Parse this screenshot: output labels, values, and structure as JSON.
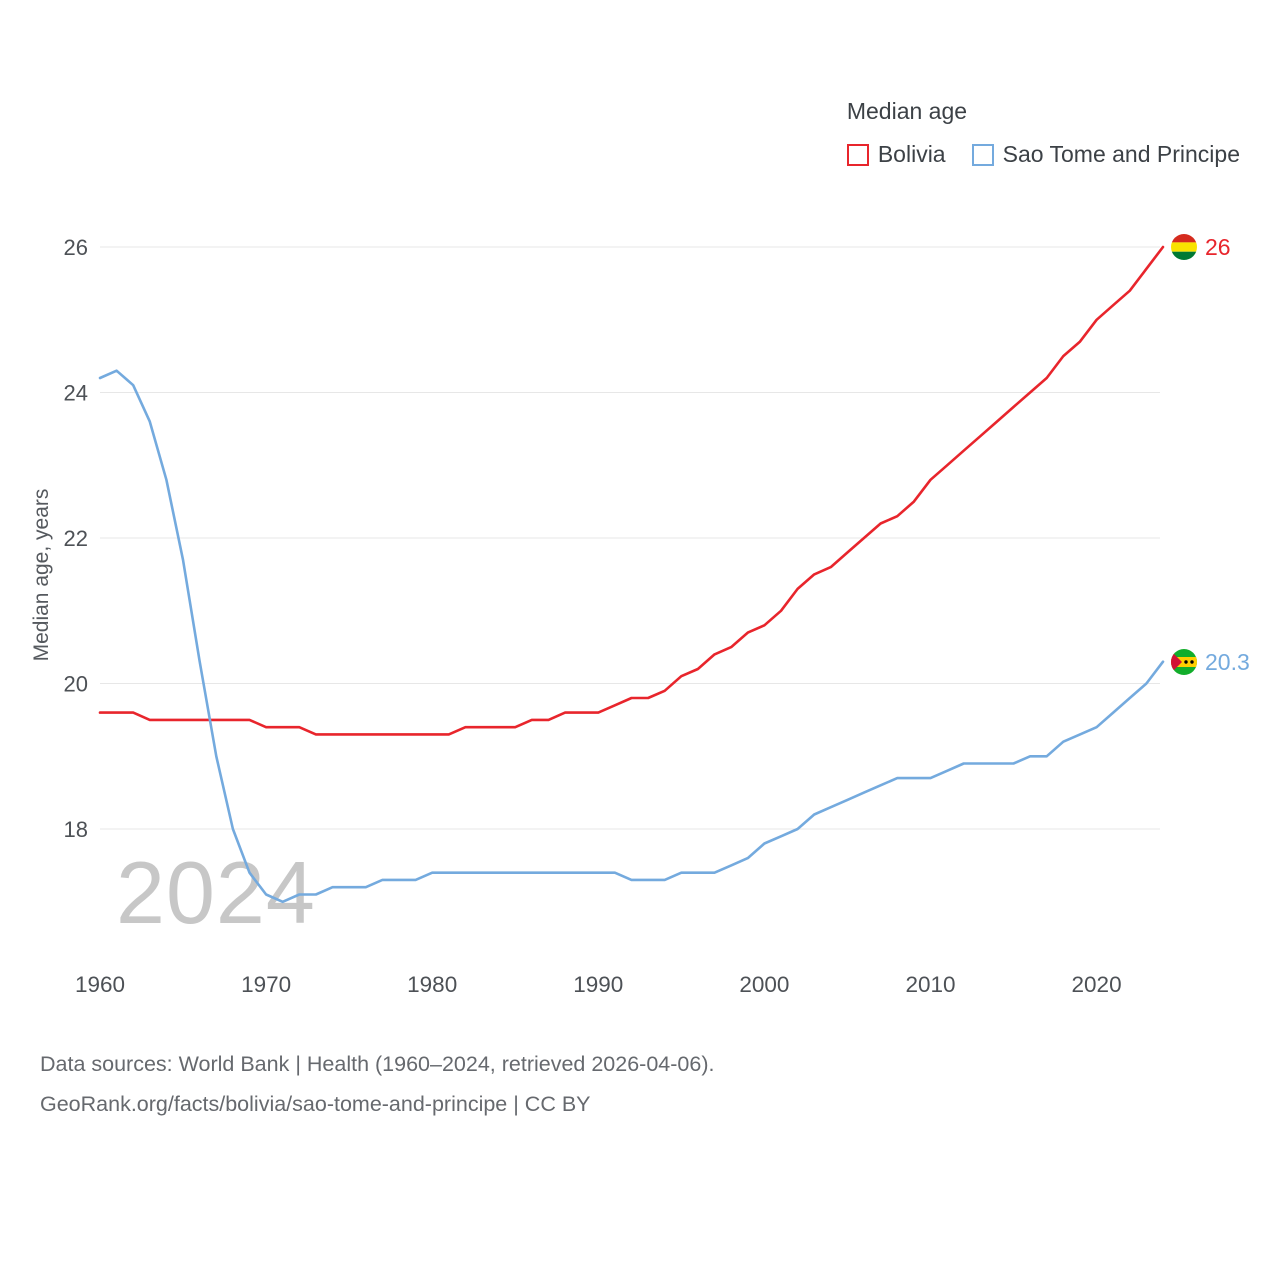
{
  "legend": {
    "title": "Median age",
    "items": [
      {
        "label": "Bolivia",
        "color": "#e8252c"
      },
      {
        "label": "Sao Tome and Principe",
        "color": "#74aade"
      }
    ]
  },
  "watermark": "2024",
  "end_labels": [
    {
      "value": "26",
      "color": "#e8252c",
      "flag": "bolivia-flag-icon"
    },
    {
      "value": "20.3",
      "color": "#74aade",
      "flag": "sao-tome-flag-icon"
    }
  ],
  "footer": {
    "line1": "Data sources: World Bank | Health (1960–2024, retrieved 2026-04-06).",
    "line2": "GeoRank.org/facts/bolivia/sao-tome-and-principe | CC BY"
  },
  "chart_data": {
    "type": "line",
    "title": "Median age",
    "xlabel": "",
    "ylabel": "Median age, years",
    "ylim": [
      16.8,
      26.3
    ],
    "grid": "horizontal",
    "legend_position": "top-right",
    "yticks": [
      18,
      20,
      22,
      24,
      26
    ],
    "xticks": [
      1960,
      1970,
      1980,
      1990,
      2000,
      2010,
      2020
    ],
    "x": [
      1960,
      1961,
      1962,
      1963,
      1964,
      1965,
      1966,
      1967,
      1968,
      1969,
      1970,
      1971,
      1972,
      1973,
      1974,
      1975,
      1976,
      1977,
      1978,
      1979,
      1980,
      1981,
      1982,
      1983,
      1984,
      1985,
      1986,
      1987,
      1988,
      1989,
      1990,
      1991,
      1992,
      1993,
      1994,
      1995,
      1996,
      1997,
      1998,
      1999,
      2000,
      2001,
      2002,
      2003,
      2004,
      2005,
      2006,
      2007,
      2008,
      2009,
      2010,
      2011,
      2012,
      2013,
      2014,
      2015,
      2016,
      2017,
      2018,
      2019,
      2020,
      2021,
      2022,
      2023,
      2024
    ],
    "series": [
      {
        "name": "Bolivia",
        "color": "#e8252c",
        "end_value": 26,
        "values": [
          19.6,
          19.6,
          19.6,
          19.5,
          19.5,
          19.5,
          19.5,
          19.5,
          19.5,
          19.5,
          19.4,
          19.4,
          19.4,
          19.3,
          19.3,
          19.3,
          19.3,
          19.3,
          19.3,
          19.3,
          19.3,
          19.3,
          19.4,
          19.4,
          19.4,
          19.4,
          19.5,
          19.5,
          19.6,
          19.6,
          19.6,
          19.7,
          19.8,
          19.8,
          19.9,
          20.1,
          20.2,
          20.4,
          20.5,
          20.7,
          20.8,
          21.0,
          21.3,
          21.5,
          21.6,
          21.8,
          22.0,
          22.2,
          22.3,
          22.5,
          22.8,
          23.0,
          23.2,
          23.4,
          23.6,
          23.8,
          24.0,
          24.2,
          24.5,
          24.7,
          25.0,
          25.2,
          25.4,
          25.7,
          26.0
        ]
      },
      {
        "name": "Sao Tome and Principe",
        "color": "#74aade",
        "end_value": 20.3,
        "values": [
          24.2,
          24.3,
          24.1,
          23.6,
          22.8,
          21.7,
          20.3,
          19.0,
          18.0,
          17.4,
          17.1,
          17.0,
          17.1,
          17.1,
          17.2,
          17.2,
          17.2,
          17.3,
          17.3,
          17.3,
          17.4,
          17.4,
          17.4,
          17.4,
          17.4,
          17.4,
          17.4,
          17.4,
          17.4,
          17.4,
          17.4,
          17.4,
          17.3,
          17.3,
          17.3,
          17.4,
          17.4,
          17.4,
          17.5,
          17.6,
          17.8,
          17.9,
          18.0,
          18.2,
          18.3,
          18.4,
          18.5,
          18.6,
          18.7,
          18.7,
          18.7,
          18.8,
          18.9,
          18.9,
          18.9,
          18.9,
          19.0,
          19.0,
          19.2,
          19.3,
          19.4,
          19.6,
          19.8,
          20.0,
          20.3
        ]
      }
    ]
  }
}
